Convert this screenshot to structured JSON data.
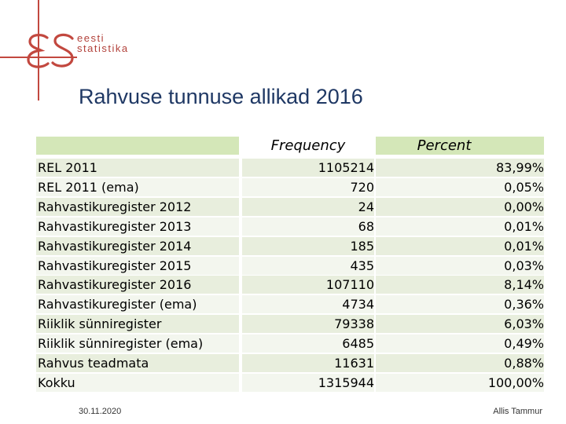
{
  "logo": {
    "line1": "eesti",
    "line2": "statistika"
  },
  "title": "Rahvuse tunnuse allikad 2016",
  "table": {
    "headers": {
      "label": "",
      "frequency": "Frequency",
      "percent": "Percent"
    },
    "rows": [
      {
        "label": "REL 2011",
        "frequency": "1105214",
        "percent": "83,99%"
      },
      {
        "label": "REL 2011 (ema)",
        "frequency": "720",
        "percent": "0,05%"
      },
      {
        "label": "Rahvastikuregister 2012",
        "frequency": "24",
        "percent": "0,00%"
      },
      {
        "label": "Rahvastikuregister 2013",
        "frequency": "68",
        "percent": "0,01%"
      },
      {
        "label": "Rahvastikuregister 2014",
        "frequency": "185",
        "percent": "0,01%"
      },
      {
        "label": "Rahvastikuregister 2015",
        "frequency": "435",
        "percent": "0,03%"
      },
      {
        "label": "Rahvastikuregister 2016",
        "frequency": "107110",
        "percent": "8,14%"
      },
      {
        "label": "Rahvastikuregister (ema)",
        "frequency": "4734",
        "percent": "0,36%"
      },
      {
        "label": "Riiklik sünniregister",
        "frequency": "79338",
        "percent": "6,03%"
      },
      {
        "label": "Riiklik sünniregister (ema)",
        "frequency": "6485",
        "percent": "0,49%"
      },
      {
        "label": "Rahvus teadmata",
        "frequency": "11631",
        "percent": "0,88%"
      },
      {
        "label": "Kokku",
        "frequency": "1315944",
        "percent": "100,00%"
      }
    ]
  },
  "footer": {
    "date": "30.11.2020",
    "author": "Allis Tammur"
  },
  "colors": {
    "accent": "#c2483f",
    "title": "#1f3864",
    "header_bg": "#d4e7b8",
    "row_a": "#e8eedd",
    "row_b": "#f3f6ee"
  }
}
